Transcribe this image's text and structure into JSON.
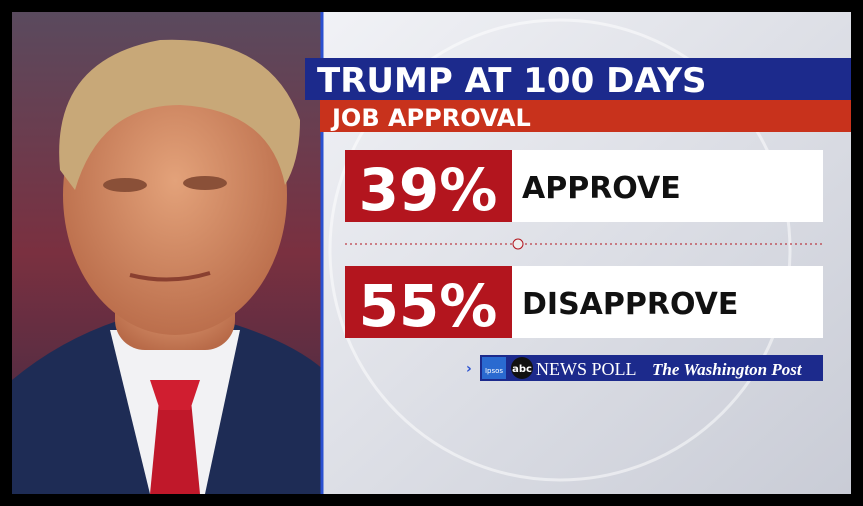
{
  "header": {
    "title": "TRUMP AT 100 DAYS",
    "subtitle": "JOB APPROVAL"
  },
  "results": [
    {
      "percent": "39%",
      "label": "APPROVE"
    },
    {
      "percent": "55%",
      "label": "DISAPPROVE"
    }
  ],
  "source": {
    "ipsos": "Ipsos",
    "abc": "abc",
    "poll": "NEWS POLL",
    "paper": "The Washington Post"
  }
}
